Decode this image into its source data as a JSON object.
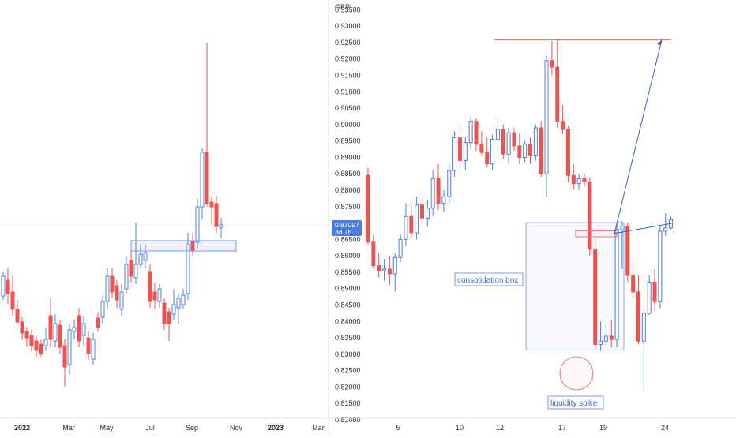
{
  "colors": {
    "up": "#4c7de0",
    "up_fill": "#ffffff",
    "down": "#ef5350",
    "annotation": "#5b84d6",
    "box_fill": "#eef3fc",
    "price_tag": "#4c7de0",
    "grid": "#f0f3fa",
    "axis_text": "#2a2e39",
    "target_line": "#e06060"
  },
  "left_chart": {
    "time_labels": [
      "2022",
      "Mar",
      "May",
      "Jul",
      "Sep",
      "Nov",
      "2023",
      "Mar"
    ],
    "current_price_line_visible": true,
    "zone_box_visible": true
  },
  "right_chart": {
    "currency": "GBP",
    "price_tag": {
      "price": "0.87097",
      "countdown": "3d 7h"
    },
    "time_labels": [
      "5",
      "10",
      "12",
      "17",
      "19",
      "24"
    ],
    "annotations": {
      "consolidation_label": "consolidation box",
      "liquidity_label": "liquidity spike"
    },
    "chart_data": {
      "type": "candlestick",
      "title": "",
      "y_axis_label": "GBP",
      "ylim": [
        0.81,
        0.937
      ],
      "y_ticks": [
        "0.93500",
        "0.93000",
        "0.92500",
        "0.92000",
        "0.91500",
        "0.91000",
        "0.90500",
        "0.90000",
        "0.89500",
        "0.89000",
        "0.88500",
        "0.88000",
        "0.87500",
        "0.87000",
        "0.86500",
        "0.86000",
        "0.85500",
        "0.85000",
        "0.84500",
        "0.84000",
        "0.83500",
        "0.83000",
        "0.82500",
        "0.82000",
        "0.81500",
        "0.81000"
      ],
      "x_ticks": [
        "5",
        "10",
        "12",
        "17",
        "19",
        "24"
      ],
      "consolidation_box": {
        "top": 0.8701,
        "bottom": 0.8313
      },
      "liquidity_spike_low": 0.8187,
      "target_level": 0.9258,
      "candles": [
        {
          "o": 0.8845,
          "h": 0.8868,
          "l": 0.8635,
          "c": 0.8642
        },
        {
          "o": 0.8642,
          "h": 0.8665,
          "l": 0.856,
          "c": 0.857
        },
        {
          "o": 0.857,
          "h": 0.861,
          "l": 0.8535,
          "c": 0.8555
        },
        {
          "o": 0.8555,
          "h": 0.859,
          "l": 0.8525,
          "c": 0.856
        },
        {
          "o": 0.856,
          "h": 0.86,
          "l": 0.851,
          "c": 0.8545
        },
        {
          "o": 0.8545,
          "h": 0.861,
          "l": 0.849,
          "c": 0.8595
        },
        {
          "o": 0.8595,
          "h": 0.8665,
          "l": 0.858,
          "c": 0.865
        },
        {
          "o": 0.865,
          "h": 0.876,
          "l": 0.863,
          "c": 0.872
        },
        {
          "o": 0.872,
          "h": 0.876,
          "l": 0.8655,
          "c": 0.867
        },
        {
          "o": 0.867,
          "h": 0.878,
          "l": 0.865,
          "c": 0.8755
        },
        {
          "o": 0.8755,
          "h": 0.879,
          "l": 0.87,
          "c": 0.8715
        },
        {
          "o": 0.8715,
          "h": 0.877,
          "l": 0.869,
          "c": 0.8745
        },
        {
          "o": 0.8745,
          "h": 0.886,
          "l": 0.872,
          "c": 0.8835
        },
        {
          "o": 0.8835,
          "h": 0.888,
          "l": 0.874,
          "c": 0.876
        },
        {
          "o": 0.876,
          "h": 0.88,
          "l": 0.8735,
          "c": 0.878
        },
        {
          "o": 0.878,
          "h": 0.888,
          "l": 0.876,
          "c": 0.886
        },
        {
          "o": 0.886,
          "h": 0.898,
          "l": 0.884,
          "c": 0.896
        },
        {
          "o": 0.896,
          "h": 0.9,
          "l": 0.887,
          "c": 0.889
        },
        {
          "o": 0.889,
          "h": 0.896,
          "l": 0.886,
          "c": 0.8945
        },
        {
          "o": 0.8945,
          "h": 0.9025,
          "l": 0.8925,
          "c": 0.901
        },
        {
          "o": 0.901,
          "h": 0.902,
          "l": 0.892,
          "c": 0.894
        },
        {
          "o": 0.894,
          "h": 0.898,
          "l": 0.8905,
          "c": 0.8915
        },
        {
          "o": 0.8915,
          "h": 0.896,
          "l": 0.887,
          "c": 0.888
        },
        {
          "o": 0.888,
          "h": 0.897,
          "l": 0.886,
          "c": 0.8955
        },
        {
          "o": 0.8955,
          "h": 0.902,
          "l": 0.892,
          "c": 0.8985
        },
        {
          "o": 0.8985,
          "h": 0.9,
          "l": 0.8895,
          "c": 0.891
        },
        {
          "o": 0.891,
          "h": 0.899,
          "l": 0.888,
          "c": 0.8975
        },
        {
          "o": 0.8975,
          "h": 0.899,
          "l": 0.892,
          "c": 0.8935
        },
        {
          "o": 0.8935,
          "h": 0.8975,
          "l": 0.888,
          "c": 0.89
        },
        {
          "o": 0.89,
          "h": 0.895,
          "l": 0.8885,
          "c": 0.894
        },
        {
          "o": 0.894,
          "h": 0.896,
          "l": 0.888,
          "c": 0.8905
        },
        {
          "o": 0.8905,
          "h": 0.9,
          "l": 0.889,
          "c": 0.899
        },
        {
          "o": 0.899,
          "h": 0.901,
          "l": 0.884,
          "c": 0.885
        },
        {
          "o": 0.885,
          "h": 0.921,
          "l": 0.878,
          "c": 0.9195
        },
        {
          "o": 0.9195,
          "h": 0.9255,
          "l": 0.915,
          "c": 0.9175
        },
        {
          "o": 0.9175,
          "h": 0.926,
          "l": 0.899,
          "c": 0.901
        },
        {
          "o": 0.901,
          "h": 0.906,
          "l": 0.897,
          "c": 0.8985
        },
        {
          "o": 0.8985,
          "h": 0.8995,
          "l": 0.8825,
          "c": 0.8845
        },
        {
          "o": 0.8845,
          "h": 0.888,
          "l": 0.88,
          "c": 0.882
        },
        {
          "o": 0.882,
          "h": 0.885,
          "l": 0.88,
          "c": 0.8835
        },
        {
          "o": 0.8835,
          "h": 0.885,
          "l": 0.881,
          "c": 0.8825
        },
        {
          "o": 0.8825,
          "h": 0.884,
          "l": 0.86,
          "c": 0.862
        },
        {
          "o": 0.862,
          "h": 0.865,
          "l": 0.8312,
          "c": 0.833
        },
        {
          "o": 0.833,
          "h": 0.84,
          "l": 0.831,
          "c": 0.834
        },
        {
          "o": 0.834,
          "h": 0.839,
          "l": 0.832,
          "c": 0.8355
        },
        {
          "o": 0.8355,
          "h": 0.8405,
          "l": 0.832,
          "c": 0.8345
        },
        {
          "o": 0.8345,
          "h": 0.87,
          "l": 0.832,
          "c": 0.868
        },
        {
          "o": 0.868,
          "h": 0.8705,
          "l": 0.856,
          "c": 0.869
        },
        {
          "o": 0.869,
          "h": 0.87,
          "l": 0.852,
          "c": 0.854
        },
        {
          "o": 0.854,
          "h": 0.858,
          "l": 0.847,
          "c": 0.849
        },
        {
          "o": 0.849,
          "h": 0.854,
          "l": 0.833,
          "c": 0.834
        },
        {
          "o": 0.834,
          "h": 0.844,
          "l": 0.8187,
          "c": 0.8425
        },
        {
          "o": 0.8425,
          "h": 0.854,
          "l": 0.842,
          "c": 0.852
        },
        {
          "o": 0.852,
          "h": 0.856,
          "l": 0.843,
          "c": 0.846
        },
        {
          "o": 0.846,
          "h": 0.869,
          "l": 0.844,
          "c": 0.8675
        },
        {
          "o": 0.8675,
          "h": 0.873,
          "l": 0.866,
          "c": 0.8685
        },
        {
          "o": 0.8685,
          "h": 0.872,
          "l": 0.868,
          "c": 0.871
        }
      ]
    }
  }
}
